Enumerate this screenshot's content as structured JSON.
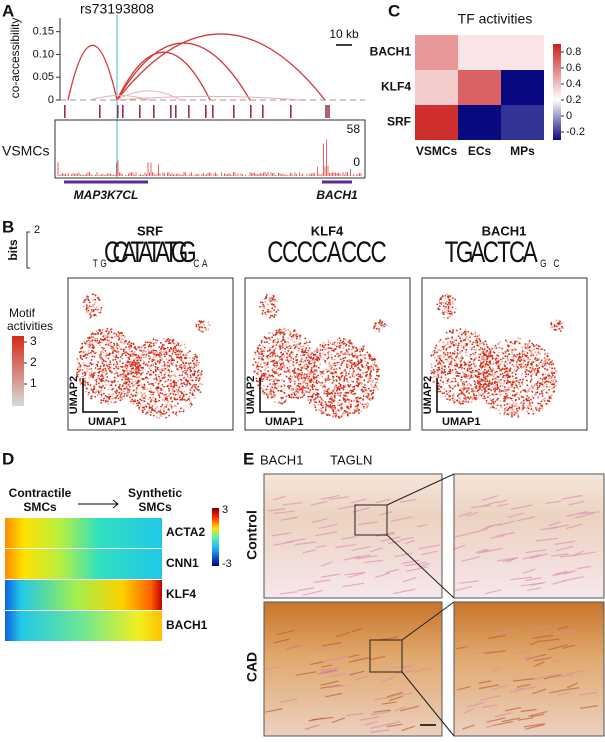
{
  "panel_labels": [
    "A",
    "B",
    "C",
    "D",
    "E"
  ],
  "panel_a": {
    "snp": "rs73193808",
    "y_label": "co-accessibility",
    "ylim": [
      0,
      0.18
    ],
    "yticks": [
      0,
      0.05,
      {
        "value": 0.1,
        "label": "0.10"
      },
      0.15
    ],
    "scale_bar": "10 kb",
    "link_heights": [
      0.12,
      0.105,
      0.125,
      0.145
    ],
    "track_name": "VSMCs",
    "track_range": [
      0,
      58
    ],
    "genes": [
      "MAP3K7CL",
      "BACH1"
    ]
  },
  "panel_b": {
    "logo_label": "bits",
    "logo_max": 2,
    "motifs": [
      {
        "name": "SRF",
        "logo": [
          "T",
          "G",
          "C",
          "C",
          "A",
          "T",
          "A",
          "T",
          "A",
          "T",
          "G",
          "G",
          "C",
          "A"
        ]
      },
      {
        "name": "KLF4",
        "logo": [
          "C",
          "C",
          "C",
          "C",
          "A",
          "C",
          "C",
          "C"
        ]
      },
      {
        "name": "BACH1",
        "logo": [
          "T",
          "G",
          "A",
          "C",
          "T",
          "C",
          "A",
          "G",
          "C"
        ]
      }
    ],
    "colorbar_title": [
      "Motif",
      "activities"
    ],
    "colorbar_ticks": [
      3,
      2,
      1
    ],
    "umap_axes": [
      "UMAP1",
      "UMAP2"
    ]
  },
  "panel_c": {
    "title": "TF activities",
    "rows": [
      "BACH1",
      "KLF4",
      "SRF"
    ],
    "columns": [
      "VSMCs",
      "ECs",
      "MPs"
    ],
    "values": [
      [
        0.4,
        0.1,
        0.1
      ],
      [
        0.2,
        0.6,
        -0.3
      ],
      [
        0.8,
        -0.3,
        -0.25
      ]
    ],
    "colorbar_range": [
      -0.3,
      0.9
    ],
    "colorbar_ticks": [
      0.8,
      0.6,
      0.4,
      0.2,
      0,
      -0.2
    ]
  },
  "panel_d": {
    "start_label": [
      "Contractile",
      "SMCs"
    ],
    "end_label": [
      "Synthetic",
      "SMCs"
    ],
    "genes": [
      "ACTA2",
      "CNN1",
      "KLF4",
      "BACH1"
    ],
    "colorbar_ticks": [
      3,
      -3
    ]
  },
  "panel_e": {
    "stains": [
      "BACH1",
      "TAGLN"
    ],
    "conditions": [
      "Control",
      "CAD"
    ]
  }
}
